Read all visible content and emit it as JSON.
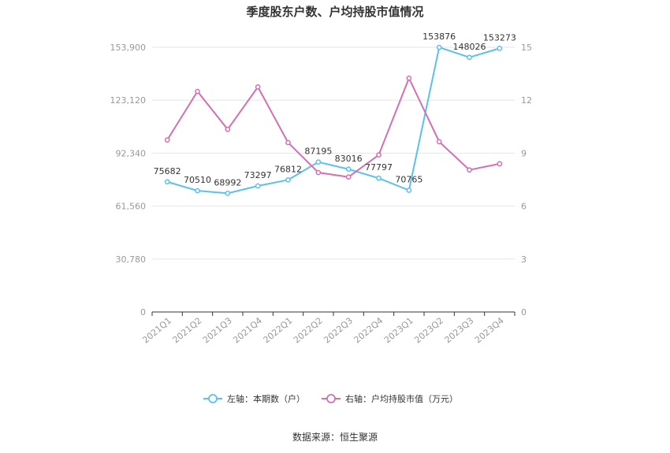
{
  "chart_data": {
    "type": "line",
    "title": "季度股东户数、户均持股市值情况",
    "categories": [
      "2021Q1",
      "2021Q2",
      "2021Q3",
      "2021Q4",
      "2022Q1",
      "2022Q2",
      "2022Q3",
      "2022Q4",
      "2023Q1",
      "2023Q2",
      "2023Q3",
      "2023Q4"
    ],
    "left_axis": {
      "ticks": [
        "0",
        "30,780",
        "61,560",
        "92,340",
        "123,120",
        "153,900"
      ],
      "range": [
        0,
        153900
      ]
    },
    "right_axis": {
      "ticks": [
        "0",
        "3",
        "6",
        "9",
        "12",
        "15"
      ],
      "range": [
        0,
        15
      ]
    },
    "series": [
      {
        "name": "左轴：本期数（户）",
        "axis": "left",
        "color": "#5bc0f0",
        "values": [
          75682,
          70510,
          68992,
          73297,
          76812,
          87195,
          83016,
          77797,
          70765,
          153876,
          148026,
          153273
        ],
        "labels": [
          "75682",
          "70510",
          "68992",
          "73297",
          "76812",
          "87195",
          "83016",
          "77797",
          "70765",
          "153876",
          "148026",
          "153273"
        ]
      },
      {
        "name": "右轴：户均持股市值（万元）",
        "axis": "right",
        "color": "#d46fb4",
        "values": [
          9.75,
          12.5,
          10.35,
          12.75,
          9.6,
          7.9,
          7.65,
          8.9,
          13.25,
          9.65,
          8.05,
          8.4
        ]
      }
    ],
    "grid": true,
    "legend_position": "bottom"
  },
  "source": "数据来源：恒生聚源"
}
